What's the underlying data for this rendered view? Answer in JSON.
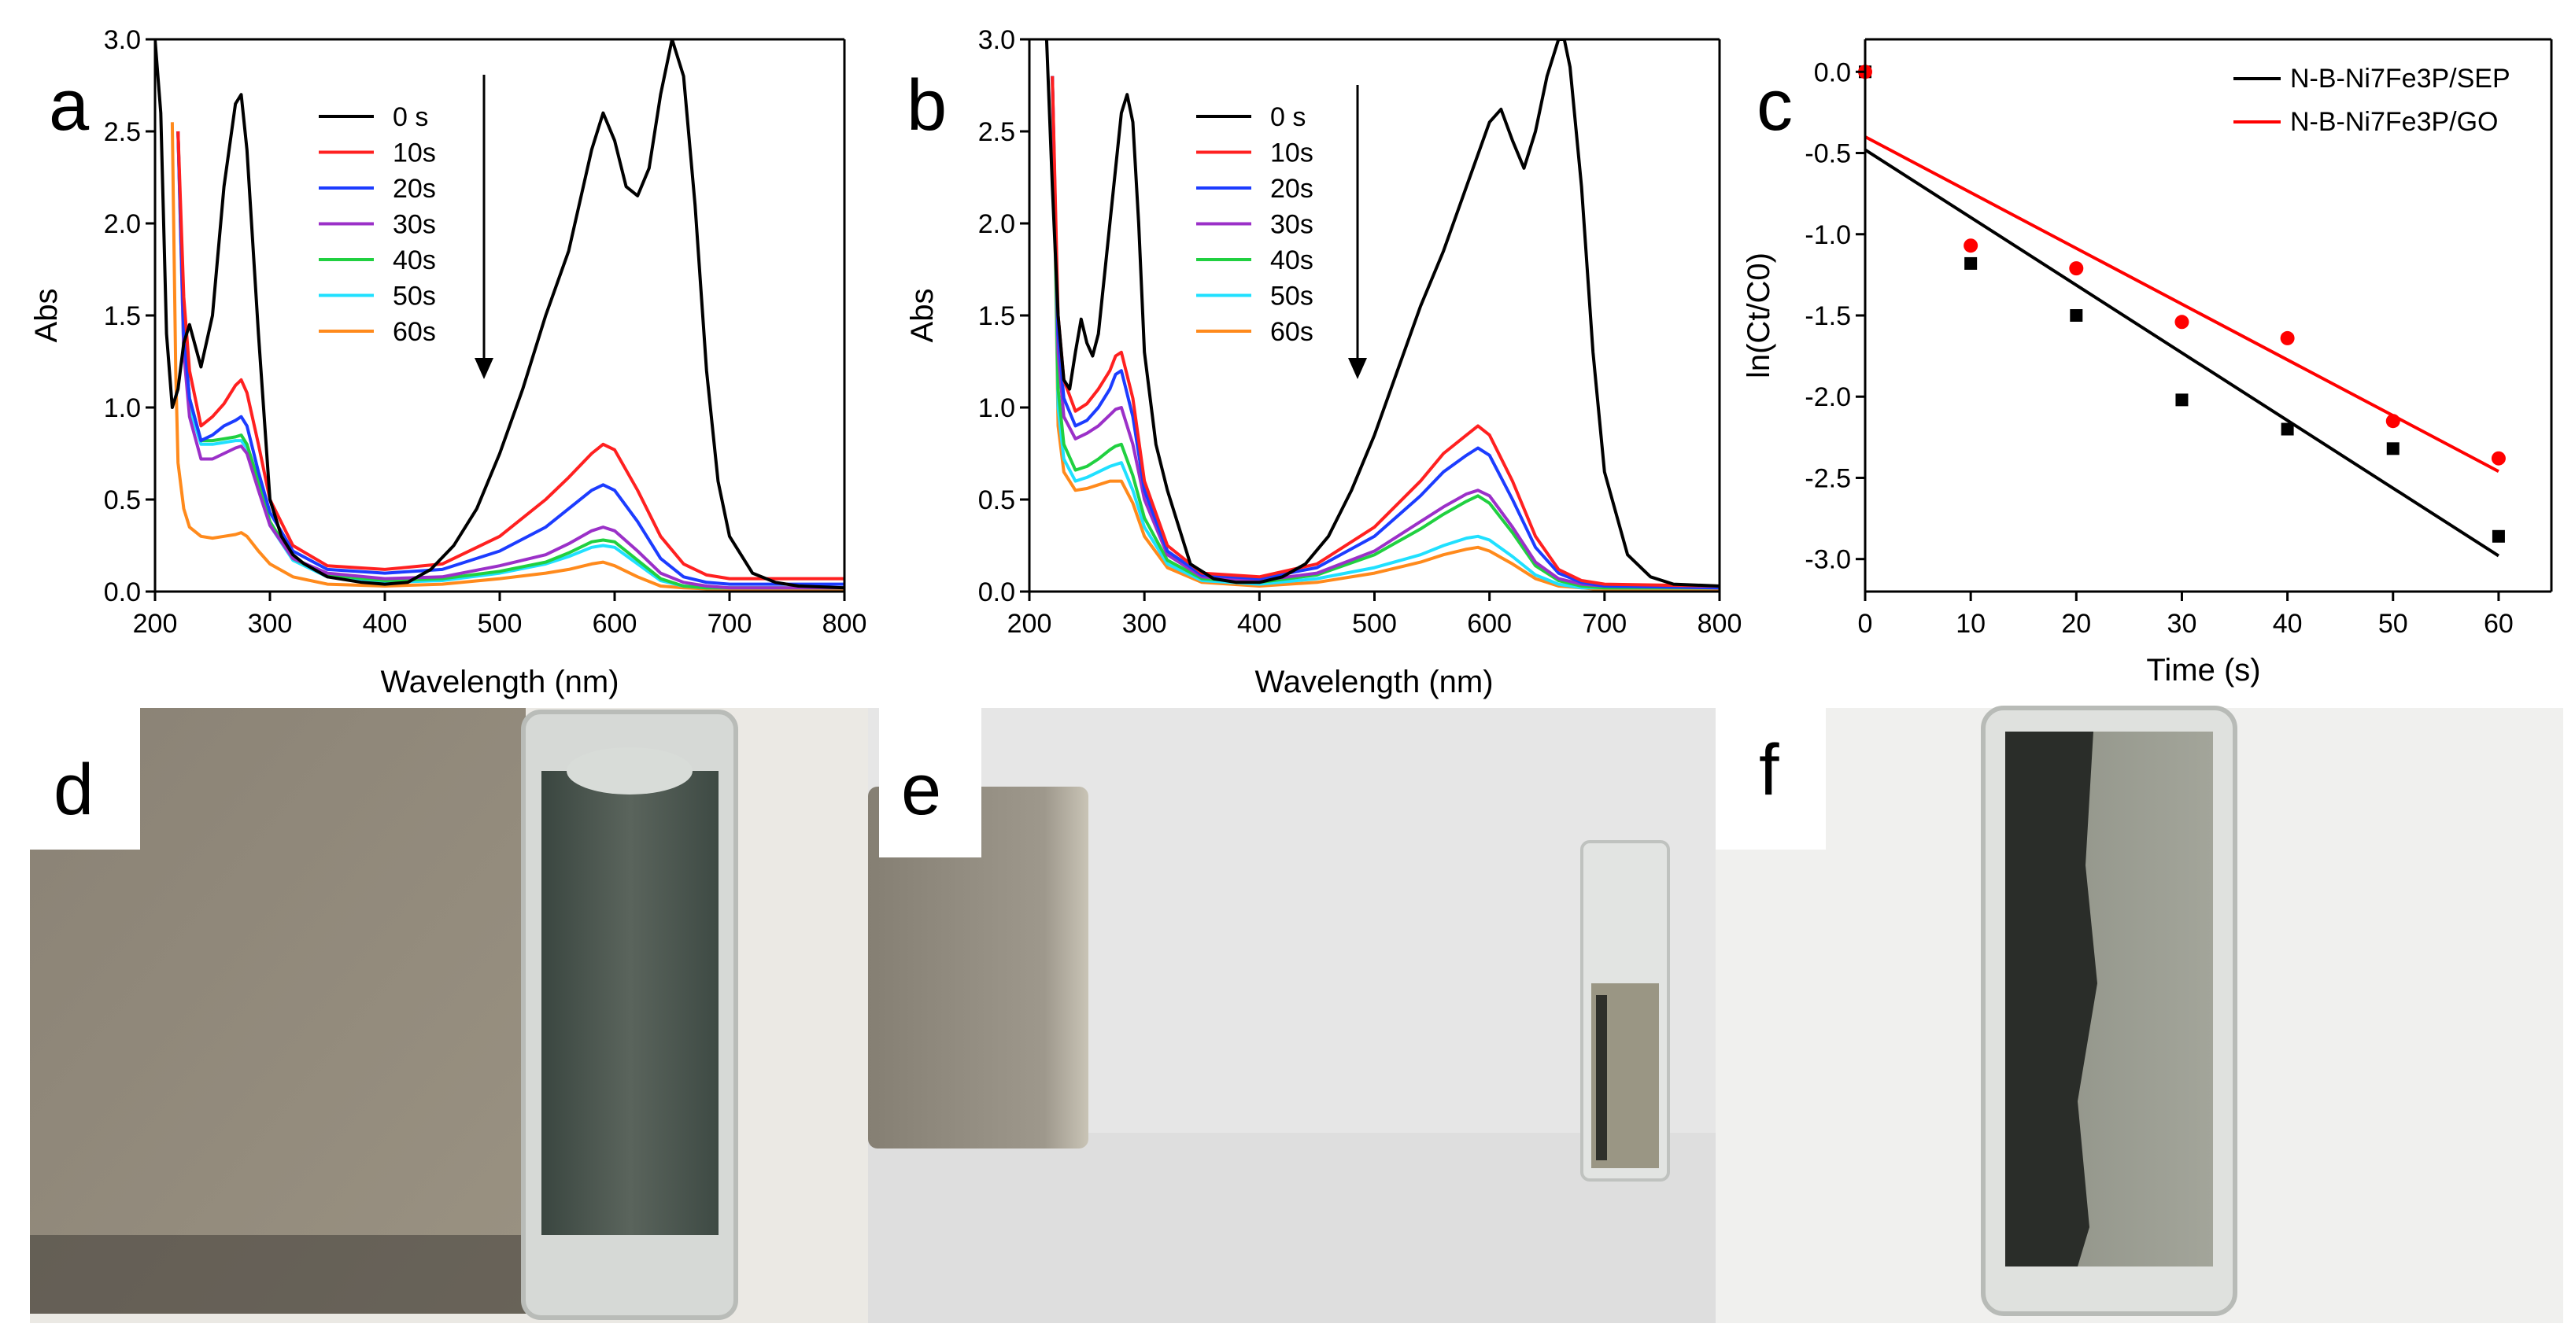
{
  "figure": {
    "panel_labels": [
      "a",
      "b",
      "c",
      "d",
      "e",
      "f"
    ]
  },
  "chart_data": [
    {
      "panel": "a",
      "type": "line",
      "xlabel": "Wavelength (nm)",
      "ylabel": "Abs",
      "xlim": [
        200,
        800
      ],
      "ylim": [
        0,
        3.0
      ],
      "xticks": [
        "200",
        "300",
        "400",
        "500",
        "600",
        "700",
        "800"
      ],
      "yticks": [
        "0.0",
        "0.5",
        "1.0",
        "1.5",
        "2.0",
        "2.5",
        "3.0"
      ],
      "legend": "top-left",
      "annotation": "downward arrow",
      "series": [
        {
          "name": "0 s",
          "color": "#000000",
          "x": [
            200,
            205,
            210,
            215,
            220,
            225,
            230,
            240,
            250,
            260,
            270,
            275,
            280,
            290,
            300,
            310,
            320,
            330,
            350,
            380,
            400,
            420,
            440,
            460,
            480,
            500,
            520,
            540,
            560,
            580,
            590,
            600,
            610,
            620,
            630,
            640,
            650,
            660,
            670,
            680,
            690,
            700,
            720,
            740,
            760,
            800
          ],
          "y": [
            3.0,
            2.6,
            1.4,
            1.0,
            1.1,
            1.35,
            1.45,
            1.22,
            1.5,
            2.2,
            2.65,
            2.7,
            2.4,
            1.4,
            0.5,
            0.3,
            0.2,
            0.15,
            0.08,
            0.05,
            0.04,
            0.05,
            0.12,
            0.25,
            0.45,
            0.75,
            1.1,
            1.5,
            1.85,
            2.4,
            2.6,
            2.45,
            2.2,
            2.15,
            2.3,
            2.7,
            3.0,
            2.8,
            2.1,
            1.2,
            0.6,
            0.3,
            0.1,
            0.05,
            0.03,
            0.02
          ]
        },
        {
          "name": "10s",
          "color": "#ff2020",
          "x": [
            220,
            225,
            230,
            240,
            250,
            260,
            270,
            275,
            280,
            290,
            300,
            320,
            350,
            400,
            450,
            500,
            540,
            560,
            580,
            590,
            600,
            620,
            640,
            660,
            680,
            700,
            800
          ],
          "y": [
            2.5,
            1.6,
            1.2,
            0.9,
            0.95,
            1.02,
            1.12,
            1.15,
            1.08,
            0.8,
            0.5,
            0.25,
            0.14,
            0.12,
            0.15,
            0.3,
            0.5,
            0.62,
            0.75,
            0.8,
            0.77,
            0.55,
            0.3,
            0.15,
            0.09,
            0.07,
            0.07
          ]
        },
        {
          "name": "20s",
          "color": "#1c3cff",
          "x": [
            220,
            225,
            230,
            240,
            250,
            260,
            270,
            275,
            280,
            290,
            300,
            320,
            350,
            400,
            450,
            500,
            540,
            560,
            580,
            590,
            600,
            620,
            640,
            660,
            680,
            700,
            800
          ],
          "y": [
            2.5,
            1.4,
            1.05,
            0.82,
            0.85,
            0.9,
            0.93,
            0.95,
            0.9,
            0.65,
            0.43,
            0.22,
            0.12,
            0.1,
            0.12,
            0.22,
            0.35,
            0.45,
            0.55,
            0.58,
            0.55,
            0.38,
            0.18,
            0.08,
            0.05,
            0.04,
            0.04
          ]
        },
        {
          "name": "30s",
          "color": "#9b30c8",
          "x": [
            220,
            225,
            230,
            240,
            250,
            260,
            270,
            275,
            280,
            290,
            300,
            320,
            350,
            400,
            450,
            500,
            540,
            560,
            580,
            590,
            600,
            620,
            640,
            660,
            680,
            700,
            800
          ],
          "y": [
            2.5,
            1.3,
            0.95,
            0.72,
            0.72,
            0.75,
            0.78,
            0.79,
            0.75,
            0.55,
            0.36,
            0.18,
            0.1,
            0.07,
            0.08,
            0.14,
            0.2,
            0.26,
            0.33,
            0.35,
            0.33,
            0.22,
            0.1,
            0.05,
            0.03,
            0.02,
            0.02
          ]
        },
        {
          "name": "40s",
          "color": "#20d040",
          "x": [
            220,
            225,
            230,
            240,
            250,
            260,
            270,
            275,
            280,
            290,
            300,
            320,
            350,
            400,
            450,
            500,
            540,
            560,
            580,
            590,
            600,
            620,
            640,
            660,
            680,
            700,
            800
          ],
          "y": [
            2.5,
            1.4,
            1.05,
            0.82,
            0.82,
            0.83,
            0.84,
            0.85,
            0.8,
            0.6,
            0.38,
            0.18,
            0.09,
            0.06,
            0.07,
            0.11,
            0.16,
            0.21,
            0.27,
            0.28,
            0.27,
            0.17,
            0.07,
            0.03,
            0.02,
            0.02,
            0.02
          ]
        },
        {
          "name": "50s",
          "color": "#20e0ff",
          "x": [
            220,
            225,
            230,
            240,
            250,
            260,
            270,
            275,
            280,
            290,
            300,
            320,
            350,
            400,
            450,
            500,
            540,
            560,
            580,
            590,
            600,
            620,
            640,
            660,
            680,
            700,
            800
          ],
          "y": [
            2.5,
            1.3,
            1.0,
            0.8,
            0.8,
            0.81,
            0.82,
            0.82,
            0.78,
            0.58,
            0.36,
            0.17,
            0.08,
            0.05,
            0.06,
            0.1,
            0.15,
            0.19,
            0.24,
            0.25,
            0.24,
            0.15,
            0.06,
            0.03,
            0.02,
            0.02,
            0.02
          ]
        },
        {
          "name": "60s",
          "color": "#ff8a1c",
          "x": [
            215,
            218,
            220,
            225,
            230,
            240,
            250,
            260,
            270,
            275,
            280,
            290,
            300,
            320,
            350,
            400,
            450,
            500,
            540,
            560,
            580,
            590,
            600,
            620,
            640,
            660,
            700,
            800
          ],
          "y": [
            2.55,
            1.2,
            0.7,
            0.45,
            0.35,
            0.3,
            0.29,
            0.3,
            0.31,
            0.32,
            0.3,
            0.22,
            0.15,
            0.08,
            0.04,
            0.03,
            0.04,
            0.07,
            0.1,
            0.12,
            0.15,
            0.16,
            0.14,
            0.08,
            0.03,
            0.02,
            0.01,
            0.01
          ]
        }
      ]
    },
    {
      "panel": "b",
      "type": "line",
      "xlabel": "Wavelength (nm)",
      "ylabel": "Abs",
      "xlim": [
        200,
        800
      ],
      "ylim": [
        0,
        3.0
      ],
      "xticks": [
        "200",
        "300",
        "400",
        "500",
        "600",
        "700",
        "800"
      ],
      "yticks": [
        "0.0",
        "0.5",
        "1.0",
        "1.5",
        "2.0",
        "2.5",
        "3.0"
      ],
      "legend": "top-left",
      "annotation": "downward arrow",
      "series": [
        {
          "name": "0 s",
          "color": "#000000",
          "x": [
            215,
            220,
            225,
            230,
            235,
            240,
            245,
            250,
            255,
            260,
            270,
            280,
            285,
            290,
            295,
            300,
            310,
            320,
            330,
            340,
            360,
            380,
            400,
            420,
            440,
            460,
            480,
            500,
            520,
            540,
            560,
            580,
            600,
            610,
            620,
            630,
            640,
            650,
            660,
            665,
            670,
            680,
            690,
            700,
            720,
            740,
            760,
            800
          ],
          "y": [
            3.0,
            2.2,
            1.5,
            1.15,
            1.1,
            1.3,
            1.48,
            1.35,
            1.28,
            1.4,
            2.0,
            2.6,
            2.7,
            2.55,
            2.0,
            1.3,
            0.8,
            0.55,
            0.35,
            0.15,
            0.07,
            0.05,
            0.05,
            0.08,
            0.15,
            0.3,
            0.55,
            0.85,
            1.2,
            1.55,
            1.85,
            2.2,
            2.55,
            2.62,
            2.45,
            2.3,
            2.5,
            2.8,
            3.0,
            3.0,
            2.85,
            2.2,
            1.3,
            0.65,
            0.2,
            0.08,
            0.04,
            0.03
          ]
        },
        {
          "name": "10s",
          "color": "#ff2020",
          "x": [
            220,
            225,
            230,
            240,
            250,
            260,
            270,
            275,
            280,
            290,
            300,
            320,
            350,
            400,
            450,
            500,
            540,
            560,
            580,
            590,
            600,
            620,
            640,
            660,
            680,
            700,
            800
          ],
          "y": [
            2.8,
            1.5,
            1.15,
            0.98,
            1.02,
            1.1,
            1.2,
            1.28,
            1.3,
            1.05,
            0.6,
            0.25,
            0.1,
            0.08,
            0.15,
            0.35,
            0.6,
            0.75,
            0.85,
            0.9,
            0.85,
            0.6,
            0.3,
            0.12,
            0.06,
            0.04,
            0.03
          ]
        },
        {
          "name": "20s",
          "color": "#1c3cff",
          "x": [
            220,
            225,
            230,
            240,
            250,
            260,
            270,
            275,
            280,
            290,
            300,
            320,
            350,
            400,
            450,
            500,
            540,
            560,
            580,
            590,
            600,
            620,
            640,
            660,
            680,
            700,
            800
          ],
          "y": [
            2.8,
            1.4,
            1.05,
            0.9,
            0.93,
            1.0,
            1.1,
            1.18,
            1.2,
            0.95,
            0.55,
            0.22,
            0.09,
            0.07,
            0.13,
            0.3,
            0.52,
            0.65,
            0.74,
            0.78,
            0.74,
            0.5,
            0.24,
            0.1,
            0.05,
            0.03,
            0.02
          ]
        },
        {
          "name": "30s",
          "color": "#9b30c8",
          "x": [
            220,
            225,
            230,
            240,
            250,
            260,
            270,
            275,
            280,
            290,
            300,
            320,
            350,
            400,
            450,
            500,
            540,
            560,
            580,
            590,
            600,
            620,
            640,
            660,
            680,
            700,
            800
          ],
          "y": [
            2.8,
            1.3,
            0.95,
            0.83,
            0.86,
            0.9,
            0.96,
            0.99,
            1.0,
            0.8,
            0.5,
            0.2,
            0.08,
            0.06,
            0.1,
            0.22,
            0.38,
            0.46,
            0.53,
            0.55,
            0.52,
            0.35,
            0.16,
            0.07,
            0.04,
            0.03,
            0.02
          ]
        },
        {
          "name": "40s",
          "color": "#20d040",
          "x": [
            220,
            225,
            230,
            240,
            250,
            260,
            270,
            275,
            280,
            290,
            300,
            320,
            350,
            400,
            450,
            500,
            540,
            560,
            580,
            590,
            600,
            620,
            640,
            660,
            680,
            700,
            800
          ],
          "y": [
            2.8,
            1.1,
            0.8,
            0.66,
            0.68,
            0.72,
            0.77,
            0.79,
            0.8,
            0.63,
            0.4,
            0.17,
            0.07,
            0.05,
            0.09,
            0.2,
            0.34,
            0.42,
            0.49,
            0.52,
            0.48,
            0.32,
            0.14,
            0.06,
            0.03,
            0.02,
            0.02
          ]
        },
        {
          "name": "50s",
          "color": "#20e0ff",
          "x": [
            220,
            225,
            230,
            240,
            250,
            260,
            270,
            275,
            280,
            290,
            300,
            320,
            350,
            400,
            450,
            500,
            540,
            560,
            580,
            590,
            600,
            620,
            640,
            660,
            680,
            700,
            800
          ],
          "y": [
            2.8,
            1.0,
            0.72,
            0.6,
            0.62,
            0.65,
            0.68,
            0.69,
            0.7,
            0.55,
            0.35,
            0.15,
            0.06,
            0.04,
            0.07,
            0.13,
            0.2,
            0.25,
            0.29,
            0.3,
            0.28,
            0.19,
            0.09,
            0.04,
            0.02,
            0.02,
            0.02
          ]
        },
        {
          "name": "60s",
          "color": "#ff8a1c",
          "x": [
            220,
            225,
            230,
            240,
            250,
            260,
            270,
            275,
            280,
            290,
            300,
            320,
            350,
            400,
            450,
            500,
            540,
            560,
            580,
            590,
            600,
            620,
            640,
            660,
            680,
            700,
            800
          ],
          "y": [
            2.8,
            0.9,
            0.65,
            0.55,
            0.56,
            0.58,
            0.6,
            0.6,
            0.6,
            0.48,
            0.3,
            0.13,
            0.05,
            0.03,
            0.05,
            0.1,
            0.16,
            0.2,
            0.23,
            0.24,
            0.22,
            0.15,
            0.07,
            0.03,
            0.02,
            0.01,
            0.01
          ]
        }
      ]
    },
    {
      "panel": "c",
      "type": "scatter",
      "xlabel": "Time (s)",
      "ylabel": "ln(Ct/C0)",
      "xlim": [
        0,
        65
      ],
      "ylim": [
        -3.2,
        0.2
      ],
      "xticks": [
        "0",
        "10",
        "20",
        "30",
        "40",
        "50",
        "60"
      ],
      "yticks": [
        "-3.0",
        "-2.5",
        "-2.0",
        "-1.5",
        "-1.0",
        "-0.5",
        "0.0"
      ],
      "legend": "top-right",
      "series": [
        {
          "name": "N-B-Ni7Fe3P/SEP",
          "color": "#000000",
          "marker": "square",
          "x": [
            0,
            10,
            20,
            30,
            40,
            50,
            60
          ],
          "y": [
            0.0,
            -1.18,
            -1.5,
            -2.02,
            -2.2,
            -2.32,
            -2.86
          ],
          "fit": {
            "x": [
              0,
              60
            ],
            "y": [
              -0.48,
              -2.98
            ]
          }
        },
        {
          "name": "N-B-Ni7Fe3P/GO",
          "color": "#ff0000",
          "marker": "circle",
          "x": [
            0,
            10,
            20,
            30,
            40,
            50,
            60
          ],
          "y": [
            0.0,
            -1.07,
            -1.21,
            -1.54,
            -1.64,
            -2.15,
            -2.38
          ],
          "fit": {
            "x": [
              0,
              60
            ],
            "y": [
              -0.4,
              -2.46
            ]
          }
        }
      ]
    }
  ]
}
